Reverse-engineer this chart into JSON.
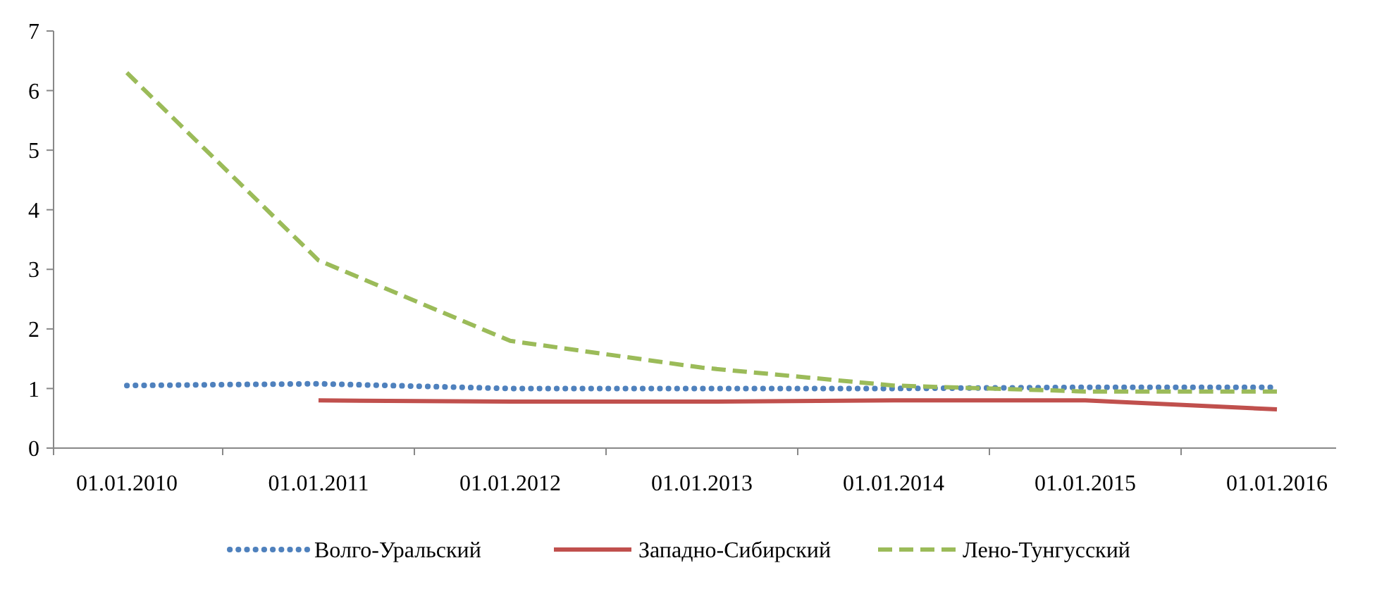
{
  "chart_data": {
    "type": "line",
    "categories": [
      "01.01.2010",
      "01.01.2011",
      "01.01.2012",
      "01.01.2013",
      "01.01.2014",
      "01.01.2015",
      "01.01.2016"
    ],
    "series": [
      {
        "name": "Волго-Уральский",
        "color": "#4f81bd",
        "line_style": "dotted",
        "values": [
          1.05,
          1.08,
          1.0,
          1.0,
          1.0,
          1.02,
          1.02
        ]
      },
      {
        "name": "Западно-Сибирский",
        "color": "#c0504d",
        "line_style": "solid",
        "values": [
          null,
          0.8,
          0.78,
          0.78,
          0.8,
          0.8,
          0.65
        ]
      },
      {
        "name": "Лено-Тунгусский",
        "color": "#9bbb59",
        "line_style": "dashed",
        "values": [
          6.3,
          3.15,
          1.8,
          1.35,
          1.05,
          0.95,
          0.95
        ]
      }
    ],
    "ylim": [
      0,
      7
    ],
    "yticks": [
      0,
      1,
      2,
      3,
      4,
      5,
      6,
      7
    ],
    "grid": false,
    "legend": "bottom",
    "marker": "none"
  }
}
